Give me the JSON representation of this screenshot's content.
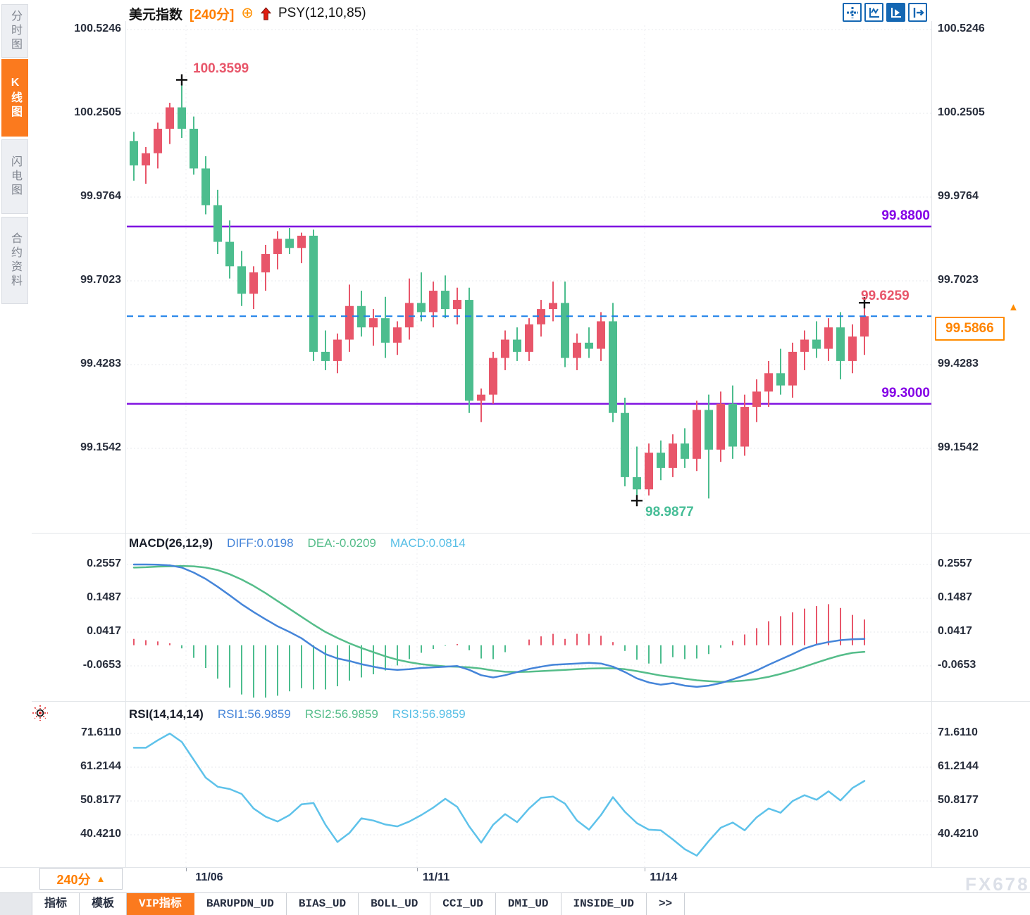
{
  "header": {
    "title": "美元指数",
    "period": "[240分]",
    "plus_icon": "⊕",
    "indicator": "PSY(12,10,85)"
  },
  "sidebar": {
    "items": [
      {
        "label": "分时图",
        "active": false
      },
      {
        "label": "K线图",
        "active": true
      },
      {
        "label": "闪电图",
        "active": false
      },
      {
        "label": "合约资料",
        "active": false
      }
    ]
  },
  "toolbar": {
    "icons": [
      "crosshair-icon",
      "scale-axis-icon",
      "play-axis-icon",
      "shift-right-icon"
    ],
    "active_index": 2
  },
  "colors": {
    "up": "#e8566a",
    "down": "#4cbd8e",
    "line_diff": "#4585d9",
    "line_dea": "#55bd8a",
    "line_rsi": "#5ec2ea",
    "level": "#7d0ce0",
    "last_price_line": "#1b7fe8",
    "accent_orange": "#fb7a1e",
    "price_orange": "#ff8400",
    "icon_blue": "#1467b3"
  },
  "chart_data": [
    {
      "type": "candlestick",
      "title": "美元指数",
      "period": "240分",
      "ylim": [
        98.93,
        100.56
      ],
      "y_ticks": [
        100.5246,
        100.2505,
        99.9764,
        99.7023,
        99.4283,
        99.1542
      ],
      "x_ticks": [
        "11/06",
        "11/11",
        "11/14"
      ],
      "grid": true,
      "levels": {
        "resistance": 99.88,
        "support": 99.3,
        "last": 99.5866
      },
      "annotations": {
        "high": "100.3599",
        "low": "98.9877",
        "prev_high": "99.6259",
        "last_price": "99.5866",
        "resistance": "99.8800",
        "support": "99.3000"
      },
      "marker_indices": {
        "high": 4,
        "low": 42,
        "last": 61
      },
      "candles": [
        [
          100.16,
          100.19,
          100.03,
          100.08
        ],
        [
          100.08,
          100.14,
          100.02,
          100.12
        ],
        [
          100.12,
          100.22,
          100.07,
          100.2
        ],
        [
          100.2,
          100.285,
          100.15,
          100.27
        ],
        [
          100.27,
          100.3599,
          100.17,
          100.2
        ],
        [
          100.2,
          100.24,
          100.05,
          100.07
        ],
        [
          100.07,
          100.11,
          99.92,
          99.95
        ],
        [
          99.95,
          100.0,
          99.79,
          99.83
        ],
        [
          99.83,
          99.9,
          99.71,
          99.75
        ],
        [
          99.75,
          99.8,
          99.62,
          99.66
        ],
        [
          99.66,
          99.75,
          99.61,
          99.73
        ],
        [
          99.73,
          99.82,
          99.67,
          99.79
        ],
        [
          99.79,
          99.865,
          99.74,
          99.84
        ],
        [
          99.84,
          99.875,
          99.79,
          99.81
        ],
        [
          99.81,
          99.86,
          99.76,
          99.85
        ],
        [
          99.85,
          99.87,
          99.44,
          99.47
        ],
        [
          99.47,
          99.54,
          99.41,
          99.44
        ],
        [
          99.44,
          99.53,
          99.4,
          99.51
        ],
        [
          99.51,
          99.69,
          99.47,
          99.62
        ],
        [
          99.62,
          99.67,
          99.52,
          99.55
        ],
        [
          99.55,
          99.61,
          99.49,
          99.58
        ],
        [
          99.58,
          99.65,
          99.45,
          99.5
        ],
        [
          99.5,
          99.57,
          99.46,
          99.55
        ],
        [
          99.55,
          99.71,
          99.51,
          99.63
        ],
        [
          99.63,
          99.73,
          99.57,
          99.6
        ],
        [
          99.6,
          99.7,
          99.55,
          99.67
        ],
        [
          99.67,
          99.72,
          99.58,
          99.61
        ],
        [
          99.61,
          99.68,
          99.56,
          99.64
        ],
        [
          99.64,
          99.68,
          99.27,
          99.31
        ],
        [
          99.31,
          99.35,
          99.24,
          99.33
        ],
        [
          99.33,
          99.47,
          99.3,
          99.45
        ],
        [
          99.45,
          99.54,
          99.41,
          99.51
        ],
        [
          99.51,
          99.55,
          99.44,
          99.47
        ],
        [
          99.47,
          99.58,
          99.44,
          99.56
        ],
        [
          99.56,
          99.64,
          99.52,
          99.61
        ],
        [
          99.61,
          99.7,
          99.57,
          99.63
        ],
        [
          99.63,
          99.7,
          99.42,
          99.45
        ],
        [
          99.45,
          99.53,
          99.41,
          99.5
        ],
        [
          99.5,
          99.55,
          99.45,
          99.48
        ],
        [
          99.48,
          99.6,
          99.44,
          99.57
        ],
        [
          99.57,
          99.63,
          99.24,
          99.27
        ],
        [
          99.27,
          99.32,
          99.03,
          99.06
        ],
        [
          99.06,
          99.16,
          98.9877,
          99.02
        ],
        [
          99.02,
          99.17,
          99.0,
          99.14
        ],
        [
          99.14,
          99.18,
          99.05,
          99.09
        ],
        [
          99.09,
          99.2,
          99.06,
          99.17
        ],
        [
          99.17,
          99.22,
          99.09,
          99.12
        ],
        [
          99.12,
          99.31,
          99.08,
          99.28
        ],
        [
          99.28,
          99.33,
          98.99,
          99.15
        ],
        [
          99.15,
          99.34,
          99.11,
          99.3
        ],
        [
          99.3,
          99.36,
          99.12,
          99.16
        ],
        [
          99.16,
          99.33,
          99.13,
          99.29
        ],
        [
          99.29,
          99.38,
          99.24,
          99.34
        ],
        [
          99.34,
          99.44,
          99.29,
          99.4
        ],
        [
          99.4,
          99.48,
          99.33,
          99.36
        ],
        [
          99.36,
          99.5,
          99.32,
          99.47
        ],
        [
          99.47,
          99.54,
          99.41,
          99.51
        ],
        [
          99.51,
          99.57,
          99.45,
          99.48
        ],
        [
          99.48,
          99.58,
          99.44,
          99.55
        ],
        [
          99.55,
          99.6,
          99.38,
          99.44
        ],
        [
          99.44,
          99.56,
          99.4,
          99.52
        ],
        [
          99.52,
          99.6259,
          99.46,
          99.5866
        ]
      ]
    },
    {
      "type": "macd",
      "legend": {
        "name": "MACD(26,12,9)",
        "diff": "DIFF:0.0198",
        "dea": "DEA:-0.0209",
        "macd": "MACD:0.0814"
      },
      "y_ticks": [
        0.2557,
        0.1487,
        0.0417,
        -0.0653
      ],
      "diff": [
        0.2557,
        0.2557,
        0.255,
        0.253,
        0.246,
        0.23,
        0.21,
        0.185,
        0.158,
        0.13,
        0.105,
        0.082,
        0.06,
        0.042,
        0.022,
        -0.005,
        -0.028,
        -0.042,
        -0.05,
        -0.06,
        -0.068,
        -0.075,
        -0.078,
        -0.076,
        -0.072,
        -0.07,
        -0.068,
        -0.066,
        -0.078,
        -0.095,
        -0.102,
        -0.095,
        -0.085,
        -0.075,
        -0.068,
        -0.062,
        -0.06,
        -0.058,
        -0.056,
        -0.058,
        -0.068,
        -0.085,
        -0.105,
        -0.118,
        -0.125,
        -0.12,
        -0.128,
        -0.132,
        -0.128,
        -0.12,
        -0.108,
        -0.095,
        -0.08,
        -0.062,
        -0.045,
        -0.028,
        -0.01,
        0.002,
        0.01,
        0.016,
        0.019,
        0.0198
      ],
      "dea": [
        0.246,
        0.247,
        0.249,
        0.25,
        0.251,
        0.25,
        0.246,
        0.238,
        0.225,
        0.208,
        0.188,
        0.165,
        0.14,
        0.115,
        0.09,
        0.065,
        0.042,
        0.023,
        0.006,
        -0.009,
        -0.022,
        -0.035,
        -0.046,
        -0.054,
        -0.06,
        -0.064,
        -0.067,
        -0.068,
        -0.07,
        -0.074,
        -0.08,
        -0.084,
        -0.085,
        -0.084,
        -0.082,
        -0.08,
        -0.078,
        -0.076,
        -0.074,
        -0.073,
        -0.073,
        -0.076,
        -0.082,
        -0.089,
        -0.096,
        -0.101,
        -0.106,
        -0.111,
        -0.114,
        -0.116,
        -0.115,
        -0.112,
        -0.107,
        -0.1,
        -0.091,
        -0.08,
        -0.068,
        -0.055,
        -0.043,
        -0.032,
        -0.024,
        -0.0209
      ],
      "hist": [
        0.02,
        0.016,
        0.012,
        0.006,
        -0.01,
        -0.04,
        -0.072,
        -0.106,
        -0.134,
        -0.156,
        -0.166,
        -0.166,
        -0.16,
        -0.146,
        -0.136,
        -0.14,
        -0.14,
        -0.13,
        -0.112,
        -0.102,
        -0.092,
        -0.08,
        -0.064,
        -0.044,
        -0.024,
        -0.012,
        -0.002,
        0.004,
        -0.016,
        -0.042,
        -0.044,
        -0.022,
        0.0,
        0.018,
        0.028,
        0.036,
        0.02,
        0.036,
        0.036,
        0.03,
        0.01,
        -0.018,
        -0.046,
        -0.058,
        -0.058,
        -0.038,
        -0.044,
        -0.042,
        -0.028,
        -0.008,
        0.014,
        0.034,
        0.054,
        0.076,
        0.092,
        0.104,
        0.116,
        0.124,
        0.13,
        0.118,
        0.096,
        0.0814
      ]
    },
    {
      "type": "line",
      "legend": {
        "name": "RSI(14,14,14)",
        "rsi1": "RSI1:56.9859",
        "rsi2": "RSI2:56.9859",
        "rsi3": "RSI3:56.9859"
      },
      "y_ticks": [
        71.611,
        61.2144,
        50.8177,
        40.421
      ],
      "values": [
        67.2,
        67.2,
        69.5,
        71.6,
        69.0,
        63.5,
        58.0,
        55.2,
        54.5,
        53.0,
        48.5,
        46.0,
        44.5,
        46.5,
        49.8,
        50.2,
        43.5,
        38.2,
        41.0,
        45.5,
        44.8,
        43.6,
        43.0,
        44.5,
        46.5,
        48.8,
        51.5,
        49.0,
        43.0,
        38.0,
        43.5,
        46.8,
        44.3,
        48.5,
        51.8,
        52.2,
        50.0,
        44.8,
        42.0,
        46.5,
        52.0,
        47.5,
        44.0,
        42.0,
        41.8,
        39.0,
        36.0,
        34.0,
        38.5,
        42.6,
        44.2,
        41.8,
        45.8,
        48.5,
        47.2,
        50.8,
        52.6,
        51.2,
        53.8,
        51.0,
        54.8,
        57.0
      ]
    }
  ],
  "bottom": {
    "period_label": "240分",
    "period_arrow": "▲",
    "x_labels": [
      "11/06",
      "11/11",
      "11/14"
    ],
    "tabs": [
      {
        "label": "指标",
        "active": false
      },
      {
        "label": "模板",
        "active": false
      },
      {
        "label": "VIP指标",
        "active": true
      },
      {
        "label": "BARUPDN_UD",
        "active": false
      },
      {
        "label": "BIAS_UD",
        "active": false
      },
      {
        "label": "BOLL_UD",
        "active": false
      },
      {
        "label": "CCI_UD",
        "active": false
      },
      {
        "label": "DMI_UD",
        "active": false
      },
      {
        "label": "INSIDE_UD",
        "active": false
      },
      {
        "label": ">>",
        "active": false
      }
    ],
    "watermark": "FX678"
  }
}
